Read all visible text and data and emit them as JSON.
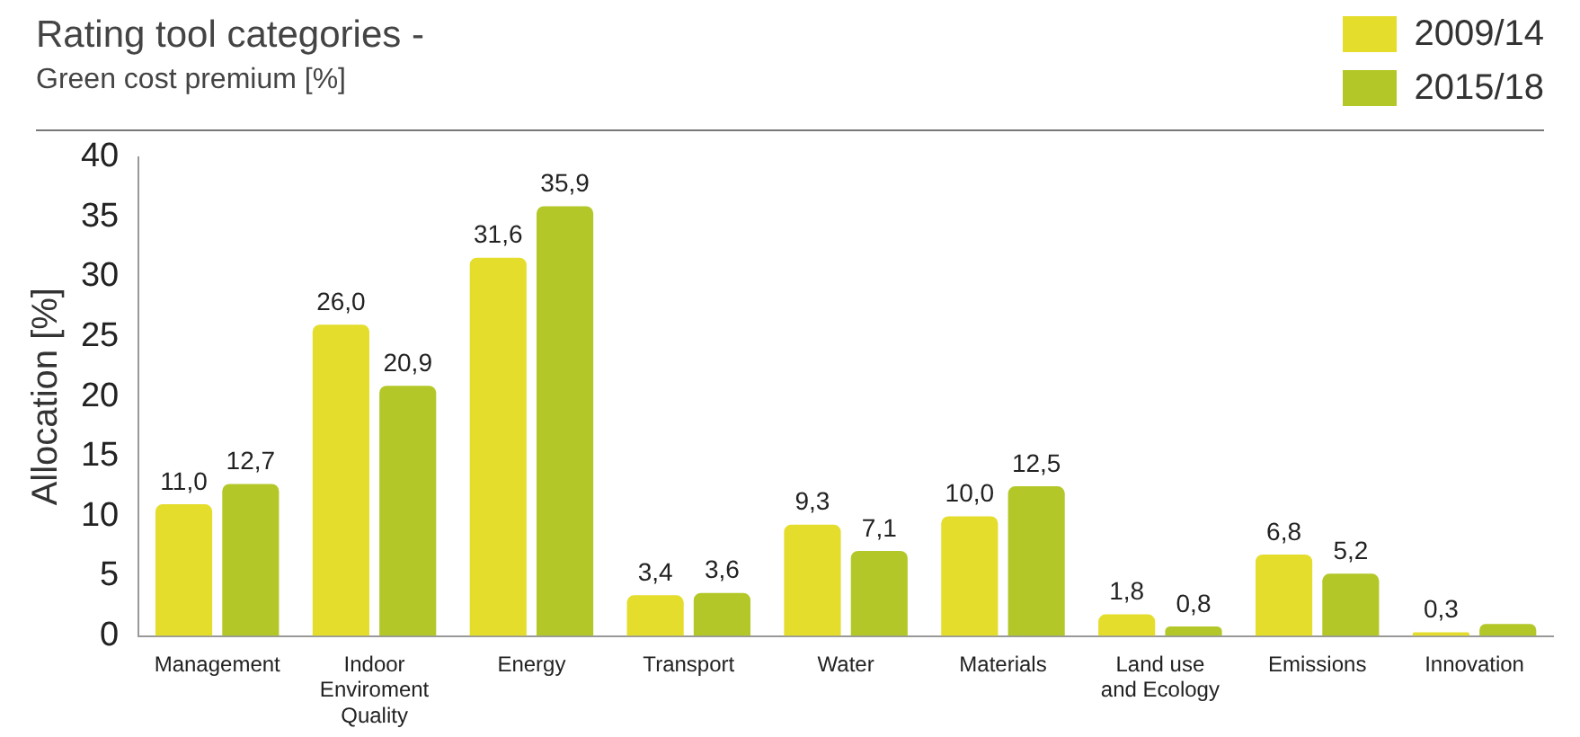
{
  "chart_data": {
    "type": "bar",
    "title": "Rating tool categories -",
    "subtitle": "Green cost premium [%]",
    "ylabel": "Allocation [%]",
    "categories": [
      "Management",
      "Indoor\nEnviroment\nQuality",
      "Energy",
      "Transport",
      "Water",
      "Materials",
      "Land use\nand Ecology",
      "Emissions",
      "Innovation"
    ],
    "series": [
      {
        "name": "2009/14",
        "color": "#e4dd2c",
        "values": [
          11.0,
          26.0,
          31.6,
          3.4,
          9.3,
          10.0,
          1.8,
          6.8,
          0.3
        ],
        "value_labels": [
          "11,0",
          "26,0",
          "31,6",
          "3,4",
          "9,3",
          "10,0",
          "1,8",
          "6,8",
          "0,3"
        ]
      },
      {
        "name": "2015/18",
        "color": "#b3c828",
        "values": [
          12.7,
          20.9,
          35.9,
          3.6,
          7.1,
          12.5,
          0.8,
          5.2,
          1
        ],
        "value_labels": [
          "12,7",
          "20,9",
          "35,9",
          "3,6",
          "7,1",
          "12,5",
          "0,8",
          "5,2",
          null
        ]
      }
    ],
    "ylim": [
      0,
      40
    ],
    "yticks": [
      0,
      5,
      10,
      15,
      20,
      25,
      30,
      35,
      40
    ],
    "grid": false,
    "legend": "top right"
  }
}
